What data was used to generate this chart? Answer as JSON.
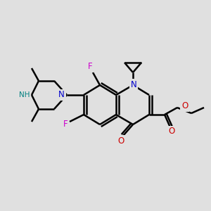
{
  "bg_color": "#e0e0e0",
  "bond_color": "#000000",
  "bond_width": 1.8,
  "atom_colors": {
    "N_blue": "#0000cc",
    "NH": "#008080",
    "O": "#cc0000",
    "F": "#cc00cc"
  },
  "fig_size": [
    3.0,
    3.0
  ],
  "dpi": 100
}
